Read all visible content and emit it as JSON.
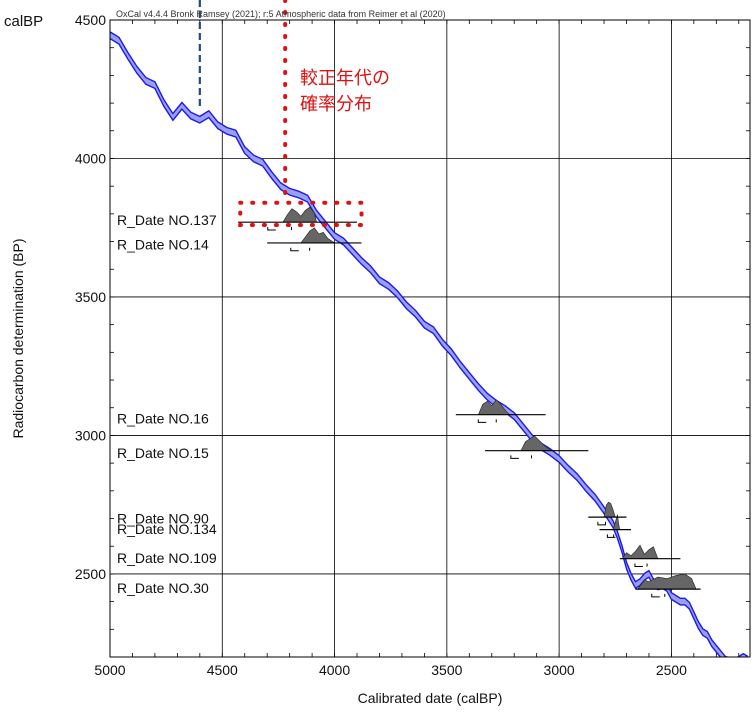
{
  "chart_data": {
    "type": "line",
    "header_text": "OxCal v4.4.4 Bronk Ramsey (2021); r:5 Atmospheric data from Reimer et al (2020)",
    "xlabel": "Calibrated date (calBP)",
    "ylabel": "Radiocarbon determination (BP)",
    "corner_label": "calBP",
    "annotation": [
      "較正年代の",
      "確率分布"
    ],
    "xlim": [
      5000,
      2150
    ],
    "ylim": [
      2200,
      4500
    ],
    "x_ticks": [
      5000,
      4500,
      4000,
      3500,
      3000,
      2500
    ],
    "y_ticks": [
      4500,
      4000,
      3500,
      3000,
      2500
    ],
    "grid": true,
    "colors": {
      "curve": "#1a1aee",
      "curve_fill": "#9aa0ee",
      "distribution": "#666666",
      "annotation": "#dd1111",
      "marker_line": "#1f4e79"
    },
    "calibration_curve": {
      "x": [
        5000,
        4960,
        4920,
        4880,
        4840,
        4800,
        4760,
        4720,
        4680,
        4640,
        4600,
        4560,
        4520,
        4480,
        4440,
        4400,
        4360,
        4320,
        4280,
        4240,
        4200,
        4160,
        4120,
        4080,
        4040,
        4000,
        3960,
        3920,
        3880,
        3840,
        3800,
        3760,
        3720,
        3680,
        3640,
        3600,
        3560,
        3520,
        3480,
        3440,
        3400,
        3360,
        3320,
        3280,
        3240,
        3200,
        3160,
        3120,
        3080,
        3040,
        3000,
        2960,
        2920,
        2880,
        2840,
        2800,
        2760,
        2740,
        2720,
        2700,
        2680,
        2660,
        2640,
        2620,
        2600,
        2580,
        2560,
        2540,
        2520,
        2500,
        2480,
        2460,
        2440,
        2420,
        2400,
        2380,
        2360,
        2340,
        2320,
        2300,
        2280,
        2260,
        2240,
        2220,
        2200,
        2180,
        2160
      ],
      "y": [
        4445,
        4425,
        4370,
        4320,
        4280,
        4265,
        4200,
        4150,
        4190,
        4155,
        4140,
        4160,
        4120,
        4100,
        4090,
        4030,
        4000,
        3985,
        3940,
        3900,
        3880,
        3870,
        3855,
        3800,
        3760,
        3720,
        3700,
        3665,
        3630,
        3600,
        3560,
        3540,
        3510,
        3470,
        3440,
        3400,
        3380,
        3335,
        3300,
        3255,
        3215,
        3175,
        3140,
        3115,
        3095,
        3070,
        3030,
        2990,
        2960,
        2940,
        2915,
        2880,
        2850,
        2810,
        2775,
        2730,
        2680,
        2640,
        2590,
        2530,
        2490,
        2460,
        2470,
        2490,
        2500,
        2470,
        2455,
        2460,
        2450,
        2420,
        2410,
        2400,
        2400,
        2385,
        2350,
        2315,
        2290,
        2280,
        2250,
        2230,
        2210,
        2190,
        2185,
        2180,
        2190,
        2200,
        2190
      ],
      "band_halfwidth": 12
    },
    "samples": [
      {
        "name": "R_Date NO.137",
        "label_y": 3778,
        "c14": 3770,
        "range": [
          4430,
          3900
        ],
        "lower": 3760
      },
      {
        "name": "R_Date NO.14",
        "label_y": 3690,
        "c14": 3695,
        "range": [
          4300,
          3880
        ],
        "lower": 3685
      },
      {
        "name": "R_Date NO.16",
        "label_y": 3062,
        "c14": 3075,
        "range": [
          3460,
          3060
        ],
        "lower": 3065
      },
      {
        "name": "R_Date NO.15",
        "label_y": 2937,
        "c14": 2945,
        "range": [
          3330,
          2870
        ],
        "lower": 2935
      },
      {
        "name": "R_Date NO.90",
        "label_y": 2700,
        "c14": 2705,
        "range": [
          2870,
          2700
        ],
        "lower": 2695
      },
      {
        "name": "R_Date NO.134",
        "label_y": 2663,
        "c14": 2660,
        "range": [
          2820,
          2680
        ],
        "lower": 2650
      },
      {
        "name": "R_Date NO.109",
        "label_y": 2558,
        "c14": 2555,
        "range": [
          2730,
          2460
        ],
        "lower": 2545
      },
      {
        "name": "R_Date NO.30",
        "label_y": 2450,
        "c14": 2445,
        "range": [
          2660,
          2370
        ],
        "lower": 2435
      }
    ],
    "distributions": [
      {
        "x": [
          4230,
          4210,
          4190,
          4170,
          4150,
          4130,
          4110,
          4090,
          4080
        ],
        "h": [
          0,
          0.5,
          0.9,
          0.7,
          0.4,
          0.8,
          1.0,
          0.6,
          0
        ],
        "base": 3770
      },
      {
        "x": [
          4150,
          4130,
          4110,
          4090,
          4070,
          4050,
          4030,
          4010,
          4000
        ],
        "h": [
          0,
          0.4,
          0.8,
          1.0,
          0.6,
          0.7,
          0.3,
          0.1,
          0
        ],
        "base": 3695
      },
      {
        "x": [
          3360,
          3340,
          3320,
          3300,
          3280,
          3260,
          3240,
          3220
        ],
        "h": [
          0,
          0.7,
          0.9,
          0.6,
          1.0,
          0.7,
          0.3,
          0
        ],
        "base": 3075
      },
      {
        "x": [
          3170,
          3150,
          3130,
          3110,
          3090,
          3070,
          3050,
          3030
        ],
        "h": [
          0,
          0.6,
          0.8,
          1.0,
          0.7,
          0.4,
          0.15,
          0
        ],
        "base": 2945
      },
      {
        "x": [
          2800,
          2790,
          2780,
          2770,
          2760,
          2750
        ],
        "h": [
          0,
          0.8,
          1.0,
          0.9,
          0.5,
          0
        ],
        "base": 2705
      },
      {
        "x": [
          2760,
          2750,
          2740,
          2735,
          2730
        ],
        "h": [
          0,
          0.5,
          1.0,
          0.4,
          0
        ],
        "base": 2660
      },
      {
        "x": [
          2720,
          2700,
          2680,
          2660,
          2640,
          2620,
          2600,
          2580,
          2560
        ],
        "h": [
          0,
          0.4,
          0.2,
          0.5,
          0.9,
          0.3,
          0.6,
          0.8,
          0
        ],
        "base": 2555
      },
      {
        "x": [
          2650,
          2620,
          2600,
          2560,
          2520,
          2480,
          2440,
          2410,
          2390
        ],
        "h": [
          0,
          0.6,
          0.5,
          0.8,
          0.7,
          0.9,
          1.0,
          0.7,
          0
        ],
        "base": 2445
      }
    ],
    "reference_lines": {
      "blue_dashed_x": 4600,
      "red_dotted_x": 4220
    }
  }
}
